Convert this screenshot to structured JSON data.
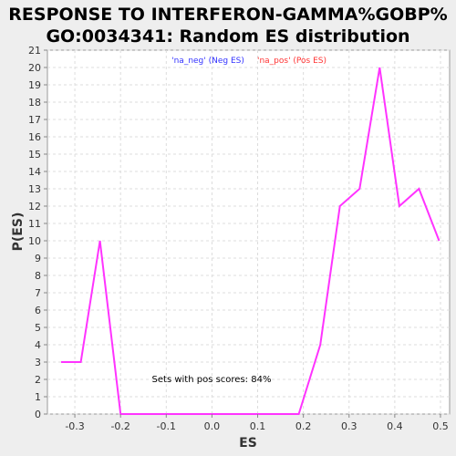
{
  "chart_data": {
    "type": "line",
    "title_line1": "RESPONSE TO INTERFERON-GAMMA%GOBP%",
    "title_line2": "GO:0034341: Random ES distribution",
    "xlabel": "ES",
    "ylabel": "P(ES)",
    "xlim": [
      -0.36,
      0.52
    ],
    "ylim": [
      0,
      21
    ],
    "xticks": [
      -0.3,
      -0.2,
      -0.1,
      0.0,
      0.1,
      0.2,
      0.3,
      0.4,
      0.5
    ],
    "xtick_labels": [
      "-0.3",
      "-0.2",
      "-0.1",
      "0.0",
      "0.1",
      "0.2",
      "0.3",
      "0.4",
      "0.5"
    ],
    "yticks": [
      0,
      1,
      2,
      3,
      4,
      5,
      6,
      7,
      8,
      9,
      10,
      11,
      12,
      13,
      14,
      15,
      16,
      17,
      18,
      19,
      20,
      21
    ],
    "grid": true,
    "legend": [
      {
        "label": "'na_neg' (Neg ES)",
        "color": "#3333ff"
      },
      {
        "label": "'na_pos' (Pos ES)",
        "color": "#ff3333"
      }
    ],
    "annotation": "Sets with pos scores: 84%",
    "series": [
      {
        "color": "#ff33ff",
        "x": [
          -0.33,
          -0.287,
          -0.245,
          -0.2,
          -0.157,
          -0.113,
          -0.07,
          -0.027,
          0.017,
          0.06,
          0.103,
          0.147,
          0.19,
          0.237,
          0.28,
          0.323,
          0.367,
          0.41,
          0.453,
          0.497
        ],
        "y": [
          3,
          3,
          10,
          0,
          0,
          0,
          0,
          0,
          0,
          0,
          0,
          0,
          0,
          4,
          12,
          13,
          20,
          12,
          13,
          10
        ]
      }
    ]
  }
}
